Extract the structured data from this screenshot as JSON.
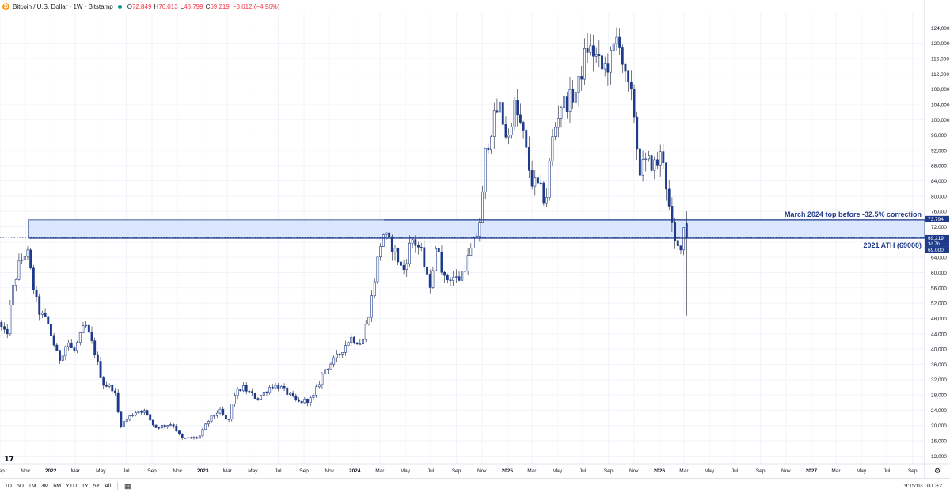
{
  "header": {
    "symbol": "Bitcoin / U.S. Dollar · 1W · Bitstamp",
    "open_key": "O",
    "open": "72,849",
    "high_key": "H",
    "high": "76,013",
    "low_key": "L",
    "low": "48,799",
    "close_key": "C",
    "close": "69,219",
    "change": "−3,612 (−4.96%)"
  },
  "colors": {
    "accent": "#1e3a8a",
    "zone_fill": "#dbe7ff",
    "axis_text": "#131722",
    "grid": "#f0f3fa"
  },
  "chart_data": {
    "type": "candlestick",
    "title": "",
    "y_axis": {
      "min": 10000,
      "max": 128000,
      "ticks": [
        "124,000",
        "120,000",
        "116,000",
        "112,000",
        "108,000",
        "104,000",
        "100,000",
        "96,000",
        "92,000",
        "88,000",
        "84,000",
        "80,000",
        "76,000",
        "72,000",
        "68,000",
        "64,000",
        "60,000",
        "56,000",
        "52,000",
        "48,000",
        "44,000",
        "40,000",
        "36,000",
        "32,000",
        "28,000",
        "24,000",
        "20,000",
        "16,000",
        "12,000"
      ]
    },
    "x_axis": {
      "start": "2021-09-01",
      "end": "2027-09-30",
      "ticks": [
        {
          "date": "2021-09-01",
          "label": "Sep"
        },
        {
          "date": "2021-11-01",
          "label": "Nov"
        },
        {
          "date": "2022-01-01",
          "label": "2022"
        },
        {
          "date": "2022-03-01",
          "label": "Mar"
        },
        {
          "date": "2022-05-01",
          "label": "May"
        },
        {
          "date": "2022-07-01",
          "label": "Jul"
        },
        {
          "date": "2022-09-01",
          "label": "Sep"
        },
        {
          "date": "2022-11-01",
          "label": "Nov"
        },
        {
          "date": "2023-01-01",
          "label": "2023"
        },
        {
          "date": "2023-03-01",
          "label": "Mar"
        },
        {
          "date": "2023-05-01",
          "label": "May"
        },
        {
          "date": "2023-07-01",
          "label": "Jul"
        },
        {
          "date": "2023-09-01",
          "label": "Sep"
        },
        {
          "date": "2023-11-01",
          "label": "Nov"
        },
        {
          "date": "2024-01-01",
          "label": "2024"
        },
        {
          "date": "2024-03-01",
          "label": "Mar"
        },
        {
          "date": "2024-05-01",
          "label": "May"
        },
        {
          "date": "2024-07-01",
          "label": "Jul"
        },
        {
          "date": "2024-09-01",
          "label": "Sep"
        },
        {
          "date": "2024-11-01",
          "label": "Nov"
        },
        {
          "date": "2025-01-01",
          "label": "2025"
        },
        {
          "date": "2025-03-01",
          "label": "Mar"
        },
        {
          "date": "2025-05-01",
          "label": "May"
        },
        {
          "date": "2025-07-01",
          "label": "Jul"
        },
        {
          "date": "2025-09-01",
          "label": "Sep"
        },
        {
          "date": "2025-11-01",
          "label": "Nov"
        },
        {
          "date": "2026-01-01",
          "label": "2026"
        },
        {
          "date": "2026-03-01",
          "label": "Mar"
        },
        {
          "date": "2026-05-01",
          "label": "May"
        },
        {
          "date": "2026-07-01",
          "label": "Jul"
        },
        {
          "date": "2026-09-01",
          "label": "Sep"
        },
        {
          "date": "2026-11-01",
          "label": "Nov"
        },
        {
          "date": "2027-01-01",
          "label": "2027"
        },
        {
          "date": "2027-03-01",
          "label": "Mar"
        },
        {
          "date": "2027-05-01",
          "label": "May"
        },
        {
          "date": "2027-07-01",
          "label": "Jul"
        },
        {
          "date": "2027-09-01",
          "label": "Sep"
        }
      ]
    },
    "anchors": [
      {
        "date": "2021-09-01",
        "close": 47000
      },
      {
        "date": "2021-09-20",
        "close": 43000
      },
      {
        "date": "2021-10-04",
        "close": 55000
      },
      {
        "date": "2021-10-20",
        "close": 62000
      },
      {
        "date": "2021-11-08",
        "close": 66000
      },
      {
        "date": "2021-11-22",
        "close": 57000
      },
      {
        "date": "2021-12-06",
        "close": 50000
      },
      {
        "date": "2021-12-27",
        "close": 47000
      },
      {
        "date": "2022-01-10",
        "close": 42000
      },
      {
        "date": "2022-01-24",
        "close": 37000
      },
      {
        "date": "2022-02-14",
        "close": 42000
      },
      {
        "date": "2022-02-28",
        "close": 39000
      },
      {
        "date": "2022-03-28",
        "close": 46500
      },
      {
        "date": "2022-04-18",
        "close": 40000
      },
      {
        "date": "2022-05-09",
        "close": 31000
      },
      {
        "date": "2022-06-06",
        "close": 29500
      },
      {
        "date": "2022-06-20",
        "close": 20000
      },
      {
        "date": "2022-07-25",
        "close": 23500
      },
      {
        "date": "2022-08-15",
        "close": 24000
      },
      {
        "date": "2022-09-12",
        "close": 19500
      },
      {
        "date": "2022-10-24",
        "close": 20500
      },
      {
        "date": "2022-11-14",
        "close": 16500
      },
      {
        "date": "2022-12-26",
        "close": 16800
      },
      {
        "date": "2023-01-16",
        "close": 21000
      },
      {
        "date": "2023-02-13",
        "close": 24000
      },
      {
        "date": "2023-03-06",
        "close": 20500
      },
      {
        "date": "2023-03-20",
        "close": 28000
      },
      {
        "date": "2023-04-10",
        "close": 30000
      },
      {
        "date": "2023-05-15",
        "close": 27000
      },
      {
        "date": "2023-06-19",
        "close": 30500
      },
      {
        "date": "2023-07-10",
        "close": 30000
      },
      {
        "date": "2023-08-21",
        "close": 26000
      },
      {
        "date": "2023-09-25",
        "close": 27000
      },
      {
        "date": "2023-10-23",
        "close": 34500
      },
      {
        "date": "2023-11-20",
        "close": 37500
      },
      {
        "date": "2023-12-25",
        "close": 43000
      },
      {
        "date": "2024-01-22",
        "close": 41500
      },
      {
        "date": "2024-02-12",
        "close": 52000
      },
      {
        "date": "2024-02-26",
        "close": 62000
      },
      {
        "date": "2024-03-11",
        "close": 70500
      },
      {
        "date": "2024-04-08",
        "close": 66000
      },
      {
        "date": "2024-04-29",
        "close": 60000
      },
      {
        "date": "2024-05-20",
        "close": 69000
      },
      {
        "date": "2024-06-10",
        "close": 66000
      },
      {
        "date": "2024-07-01",
        "close": 56000
      },
      {
        "date": "2024-07-22",
        "close": 68000
      },
      {
        "date": "2024-08-05",
        "close": 58000
      },
      {
        "date": "2024-08-26",
        "close": 59000
      },
      {
        "date": "2024-09-09",
        "close": 58000
      },
      {
        "date": "2024-09-30",
        "close": 63000
      },
      {
        "date": "2024-10-21",
        "close": 69000
      },
      {
        "date": "2024-11-04",
        "close": 76000
      },
      {
        "date": "2024-11-11",
        "close": 90000
      },
      {
        "date": "2024-11-25",
        "close": 97000
      },
      {
        "date": "2024-12-16",
        "close": 104000
      },
      {
        "date": "2025-01-06",
        "close": 94000
      },
      {
        "date": "2025-01-20",
        "close": 104000
      },
      {
        "date": "2025-02-10",
        "close": 97000
      },
      {
        "date": "2025-03-03",
        "close": 84000
      },
      {
        "date": "2025-03-24",
        "close": 82000
      },
      {
        "date": "2025-04-07",
        "close": 78000
      },
      {
        "date": "2025-04-21",
        "close": 94000
      },
      {
        "date": "2025-05-12",
        "close": 104000
      },
      {
        "date": "2025-06-02",
        "close": 105000
      },
      {
        "date": "2025-06-23",
        "close": 108000
      },
      {
        "date": "2025-07-14",
        "close": 119000
      },
      {
        "date": "2025-08-04",
        "close": 117000
      },
      {
        "date": "2025-08-18",
        "close": 113000
      },
      {
        "date": "2025-09-08",
        "close": 115000
      },
      {
        "date": "2025-09-29",
        "close": 123000
      },
      {
        "date": "2025-10-13",
        "close": 111000
      },
      {
        "date": "2025-11-03",
        "close": 104000
      },
      {
        "date": "2025-11-17",
        "close": 87000
      },
      {
        "date": "2025-12-08",
        "close": 89000
      },
      {
        "date": "2025-12-29",
        "close": 88000
      },
      {
        "date": "2026-01-12",
        "close": 92000
      },
      {
        "date": "2026-01-26",
        "close": 78000
      },
      {
        "date": "2026-02-09",
        "close": 68000
      },
      {
        "date": "2026-02-23",
        "close": 65500
      },
      {
        "date": "2026-03-02",
        "close": 72800
      },
      {
        "date": "2026-03-09",
        "close": 69219
      }
    ],
    "last": {
      "date": "2026-03-09",
      "open": 72849,
      "high": 76013,
      "low": 48799,
      "close": 69219
    },
    "zone": {
      "start": "2021-11-08",
      "top": 73794,
      "bottom": 69000
    },
    "lines": [
      {
        "name": "march-2024-top-line",
        "start": "2024-03-11",
        "value": 73794,
        "label": "March 2024 top before -32.5% correction"
      },
      {
        "name": "ath-2021-line",
        "start": "2021-11-08",
        "value": 69000,
        "label": "2021 ATH (69000)"
      }
    ],
    "price_line": 69219,
    "price_labels": [
      {
        "value": 73794,
        "text": "73,794"
      },
      {
        "value": 69219,
        "text": "69,219",
        "sub": "3d 7h"
      },
      {
        "value": 69000,
        "text": "69,000"
      }
    ]
  },
  "bottom_bar": {
    "ranges": [
      "1D",
      "5D",
      "1M",
      "3M",
      "6M",
      "YTD",
      "1Y",
      "5Y",
      "All"
    ],
    "calendar_icon": "calendar-icon",
    "clock": "19:15:03 UTC+2"
  }
}
